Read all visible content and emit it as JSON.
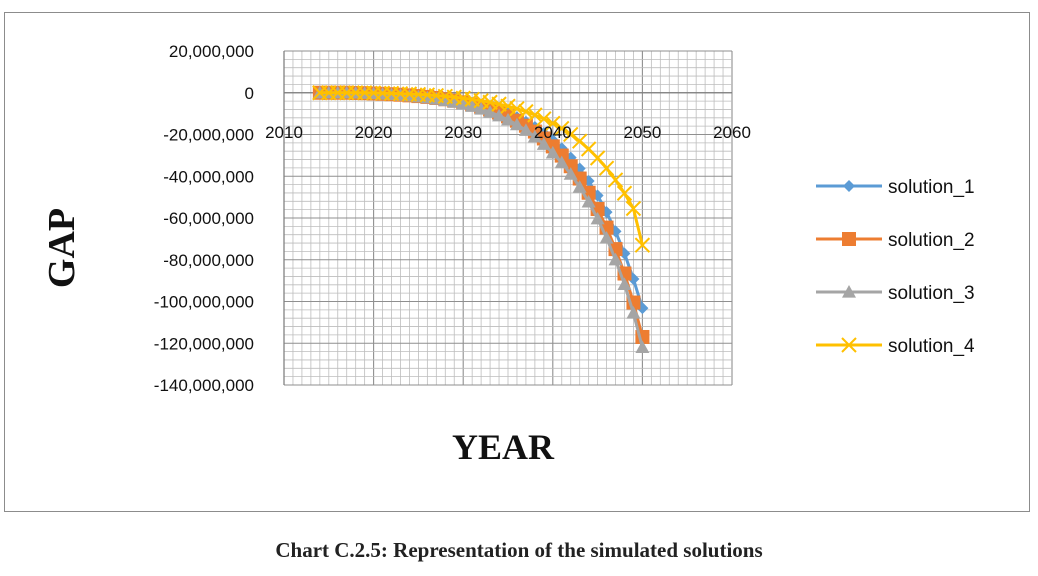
{
  "caption": "Chart C.2.5: Representation of the simulated solutions",
  "chart_data": {
    "type": "line",
    "title": "",
    "xlabel": "YEAR",
    "ylabel": "GAP",
    "xlim": [
      2010,
      2060
    ],
    "ylim": [
      -140000000,
      20000000
    ],
    "x_ticks": [
      2010,
      2020,
      2030,
      2040,
      2050,
      2060
    ],
    "x_tick_labels": [
      "2010",
      "2020",
      "2030",
      "2040",
      "2050",
      "2060"
    ],
    "y_ticks": [
      20000000,
      0,
      -20000000,
      -40000000,
      -60000000,
      -80000000,
      -100000000,
      -120000000,
      -140000000
    ],
    "y_tick_labels": [
      "20,000,000",
      "0",
      "-20,000,000",
      "-40,000,000",
      "-60,000,000",
      "-80,000,000",
      "-100,000,000",
      "-120,000,000",
      "-140,000,000"
    ],
    "grid": true,
    "legend_position": "right",
    "x": [
      2014,
      2015,
      2016,
      2017,
      2018,
      2019,
      2020,
      2021,
      2022,
      2023,
      2024,
      2025,
      2026,
      2027,
      2028,
      2029,
      2030,
      2031,
      2032,
      2033,
      2034,
      2035,
      2036,
      2037,
      2038,
      2039,
      2040,
      2041,
      2042,
      2043,
      2044,
      2045,
      2046,
      2047,
      2048,
      2049,
      2050
    ],
    "series": [
      {
        "name": "solution_1",
        "color": "#5b9bd5",
        "marker": "diamond",
        "values": [
          0,
          0,
          0,
          0,
          -100000,
          -200000,
          -300000,
          -450000,
          -600000,
          -800000,
          -1050000,
          -1350000,
          -1700000,
          -2150000,
          -2650000,
          -3250000,
          -3950000,
          -4800000,
          -5800000,
          -6950000,
          -8300000,
          -9900000,
          -11750000,
          -13900000,
          -16400000,
          -19300000,
          -22700000,
          -26600000,
          -31100000,
          -36300000,
          -42300000,
          -49200000,
          -57200000,
          -66400000,
          -77000000,
          -89200000,
          -103200000
        ]
      },
      {
        "name": "solution_2",
        "color": "#ed7d31",
        "marker": "square",
        "values": [
          0,
          0,
          0,
          0,
          -100000,
          -200000,
          -350000,
          -500000,
          -700000,
          -950000,
          -1250000,
          -1600000,
          -2000000,
          -2500000,
          -3100000,
          -3800000,
          -4600000,
          -5600000,
          -6700000,
          -8000000,
          -9500000,
          -11300000,
          -13400000,
          -15800000,
          -18600000,
          -21900000,
          -25700000,
          -30100000,
          -35200000,
          -41100000,
          -47900000,
          -55700000,
          -64600000,
          -74900000,
          -86600000,
          -100500000,
          -117000000
        ]
      },
      {
        "name": "solution_3",
        "color": "#a5a5a5",
        "marker": "triangle",
        "values": [
          0,
          0,
          0,
          0,
          -100000,
          -250000,
          -400000,
          -600000,
          -850000,
          -1150000,
          -1500000,
          -1900000,
          -2400000,
          -3000000,
          -3700000,
          -4500000,
          -5400000,
          -6500000,
          -7800000,
          -9300000,
          -11000000,
          -13000000,
          -15300000,
          -18000000,
          -21100000,
          -24700000,
          -28800000,
          -33500000,
          -39000000,
          -45200000,
          -52300000,
          -60400000,
          -69600000,
          -80000000,
          -91800000,
          -105500000,
          -122000000
        ]
      },
      {
        "name": "solution_4",
        "color": "#ffc000",
        "marker": "x",
        "values": [
          0,
          0,
          0,
          0,
          0,
          0,
          -100000,
          -200000,
          -300000,
          -450000,
          -600000,
          -800000,
          -1050000,
          -1350000,
          -1700000,
          -2100000,
          -2600000,
          -3150000,
          -3800000,
          -4550000,
          -5450000,
          -6450000,
          -7650000,
          -9050000,
          -10650000,
          -12500000,
          -14650000,
          -17100000,
          -19950000,
          -23200000,
          -26950000,
          -31250000,
          -36150000,
          -41750000,
          -48150000,
          -55450000,
          -73000000
        ]
      }
    ]
  }
}
